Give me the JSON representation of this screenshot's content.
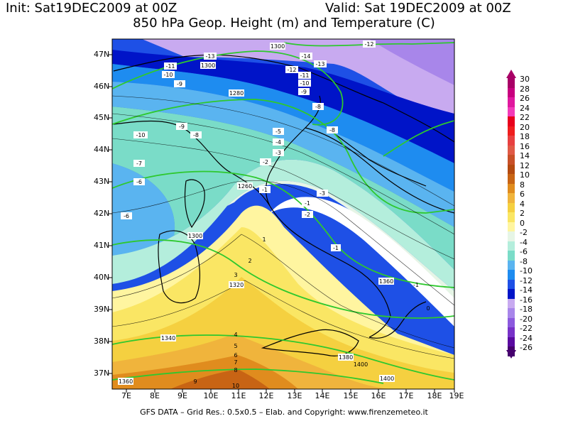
{
  "header": {
    "init": "Init:  Sat19DEC2009 at 00Z",
    "valid": "Valid: Sat 19DEC2009 at 00Z",
    "subtitle": "850 hPa Geop. Height (m) and Temperature (C)"
  },
  "footer": {
    "credit": "GFS DATA – Grid Res.: 0.5x0.5 – Elab. and Copyright: www.firenzemeteo.it"
  },
  "axes": {
    "latitudes": [
      "47N",
      "46N",
      "45N",
      "44N",
      "43N",
      "42N",
      "41N",
      "40N",
      "39N",
      "38N",
      "37N"
    ],
    "longitudes": [
      "7E",
      "8E",
      "9E",
      "10E",
      "11E",
      "12E",
      "13E",
      "14E",
      "15E",
      "16E",
      "17E",
      "18E",
      "19E"
    ]
  },
  "legend": {
    "labels": [
      "30",
      "28",
      "26",
      "24",
      "22",
      "20",
      "18",
      "16",
      "14",
      "12",
      "10",
      "8",
      "6",
      "4",
      "2",
      "0",
      "-2",
      "-4",
      "-6",
      "-8",
      "-10",
      "-12",
      "-14",
      "-16",
      "-18",
      "-20",
      "-22",
      "-24",
      "-26"
    ],
    "colors": [
      "#a80066",
      "#c8007e",
      "#e0189e",
      "#f23bb8",
      "#e8001c",
      "#f01e1e",
      "#e84040",
      "#e05a46",
      "#c85028",
      "#b44a10",
      "#c86414",
      "#e08c1e",
      "#f0b43c",
      "#f5d040",
      "#fae664",
      "#fff5a0",
      "#e6f5e6",
      "#b4eedc",
      "#7adcc8",
      "#5ab4f0",
      "#1e8cf0",
      "#1e50e6",
      "#0014c8",
      "#c8aaf0",
      "#a886ea",
      "#8c5ade",
      "#7832c8",
      "#5a0aa0",
      "#46006e"
    ]
  },
  "contour_labels": {
    "temperature": [
      "-13",
      "-14",
      "-13",
      "-12",
      "-11",
      "-10",
      "-12",
      "-11",
      "-10",
      "-9",
      "-9",
      "-8",
      "-8",
      "-10",
      "-9",
      "-8",
      "-6",
      "-5",
      "-4",
      "-3",
      "-7",
      "-6",
      "-2",
      "-1",
      "-3",
      "-1",
      "-2",
      "-1",
      "1",
      "2",
      "3",
      "4",
      "5",
      "6",
      "7",
      "8",
      "9",
      "10",
      "-1",
      "0"
    ],
    "geopotential": [
      "1300",
      "1300",
      "1280",
      "1260",
      "1300",
      "1320",
      "1340",
      "1360",
      "1360",
      "1380",
      "1400",
      "1400"
    ]
  }
}
